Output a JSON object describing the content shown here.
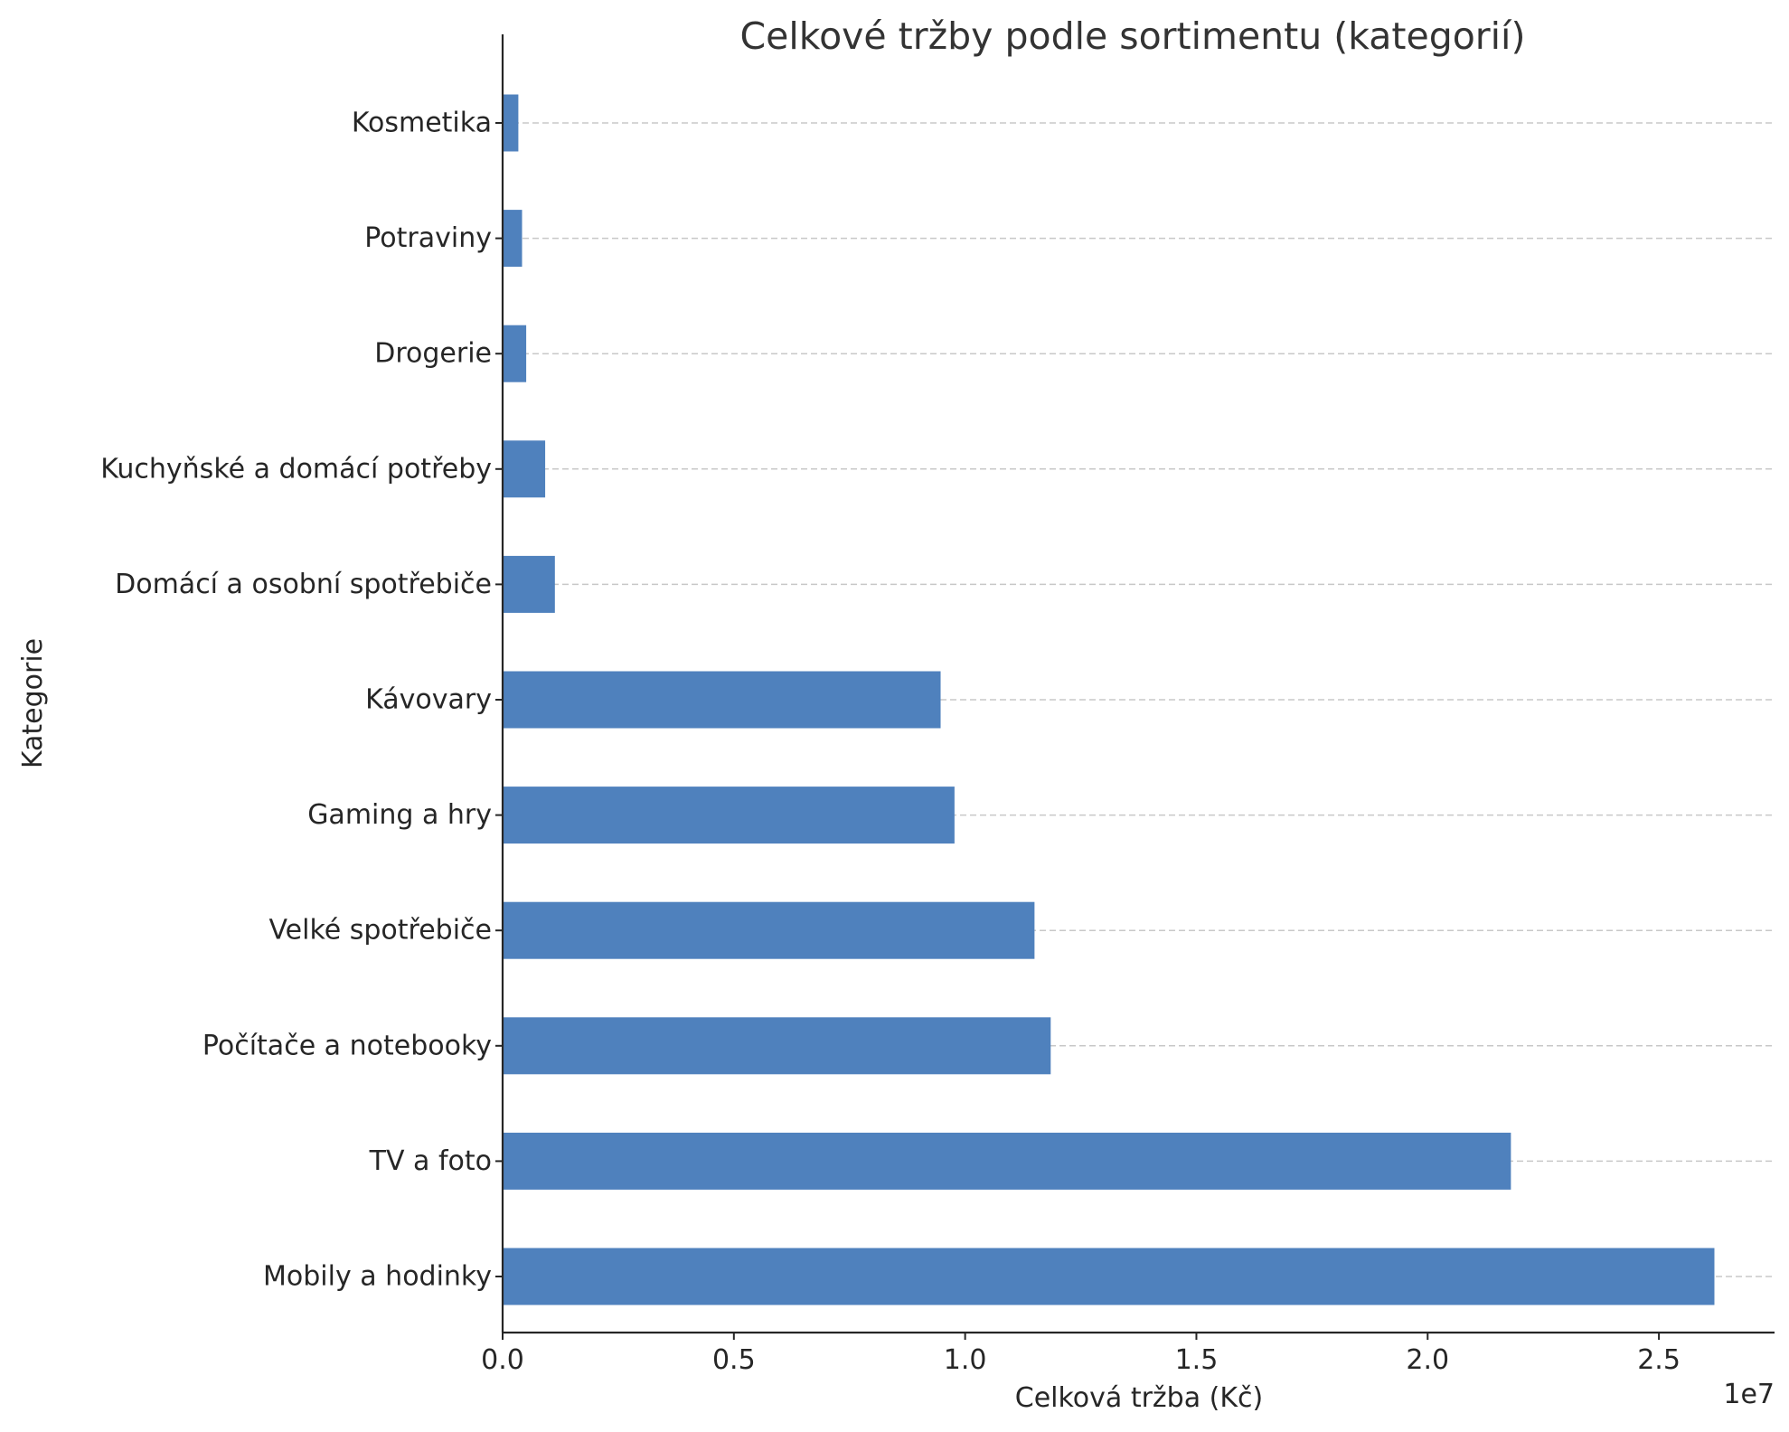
{
  "chart_data": {
    "type": "bar",
    "orientation": "horizontal",
    "title": "Celkové tržby podle sortimentu (kategorií)",
    "xlabel": "Celková tržba (Kč)",
    "ylabel": "Kategorie",
    "x_offset_label": "1e7",
    "categories": [
      "Mobily a hodinky",
      "TV a foto",
      "Počítače a notebooky",
      "Velké spotřebiče",
      "Gaming a hry",
      "Kávovary",
      "Domácí a osobní spotřebiče",
      "Kuchyňské a domácí potřeby",
      "Drogerie",
      "Potraviny",
      "Kosmetika"
    ],
    "values": [
      26200000,
      21800000,
      11850000,
      11500000,
      9770000,
      9470000,
      1130000,
      920000,
      510000,
      420000,
      340000
    ],
    "xlim": [
      0,
      27500000
    ],
    "x_ticks": [
      0,
      5000000,
      10000000,
      15000000,
      20000000,
      25000000
    ],
    "x_tick_labels": [
      "0.0",
      "0.5",
      "1.0",
      "1.5",
      "2.0",
      "2.5"
    ],
    "grid": "horizontal dashed",
    "bar_color": "#4f81bd",
    "grid_color": "#c8c8c8",
    "axis_color": "#262626"
  }
}
